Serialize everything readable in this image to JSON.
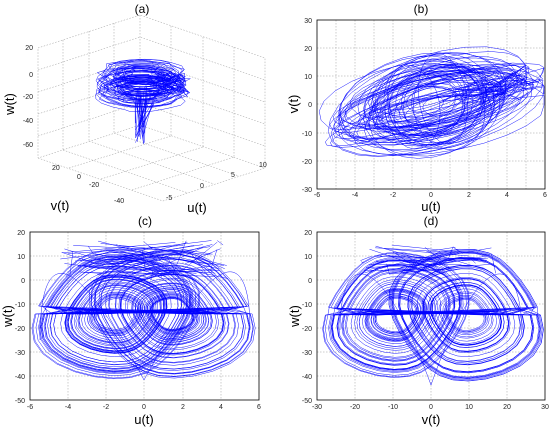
{
  "chart_data": [
    {
      "type": "line",
      "title": "(a)",
      "projection": "3d",
      "xlabel": "u(t)",
      "ylabel": "v(t)",
      "zlabel": "w(t)",
      "xlim": [
        -10,
        10
      ],
      "ylim": [
        -40,
        40
      ],
      "zlim": [
        -60,
        20
      ],
      "u_ticks": [
        "-5",
        "0",
        "5",
        "10"
      ],
      "v_ticks": [
        "-40",
        "-20",
        "0",
        "20"
      ],
      "w_ticks": [
        "20",
        "0",
        "-20",
        "-40",
        "-60"
      ],
      "grid": true,
      "color": "#0000ff"
    },
    {
      "type": "line",
      "title": "(b)",
      "xlabel": "u(t)",
      "ylabel": "v(t)",
      "xlim": [
        -6,
        6
      ],
      "ylim": [
        -30,
        30
      ],
      "x_ticks": [
        "-6",
        "-4",
        "-2",
        "0",
        "2",
        "4",
        "6"
      ],
      "y_ticks": [
        "30",
        "20",
        "10",
        "0",
        "-10",
        "-20",
        "-30"
      ],
      "grid": true,
      "color": "#0000ff"
    },
    {
      "type": "line",
      "title": "(c)",
      "xlabel": "u(t)",
      "ylabel": "w(t)",
      "xlim": [
        -6,
        6
      ],
      "ylim": [
        -50,
        20
      ],
      "x_ticks": [
        "-6",
        "-4",
        "-2",
        "0",
        "2",
        "4",
        "6"
      ],
      "y_ticks": [
        "20",
        "10",
        "0",
        "-10",
        "-20",
        "-30",
        "-40",
        "-50"
      ],
      "grid": true,
      "color": "#0000ff"
    },
    {
      "type": "line",
      "title": "(d)",
      "xlabel": "v(t)",
      "ylabel": "w(t)",
      "xlim": [
        -30,
        30
      ],
      "ylim": [
        -50,
        20
      ],
      "x_ticks": [
        "-30",
        "-20",
        "-10",
        "0",
        "10",
        "20",
        "30"
      ],
      "y_ticks": [
        "20",
        "10",
        "0",
        "-10",
        "-20",
        "-30",
        "-40",
        "-50"
      ],
      "grid": true,
      "color": "#0000ff"
    }
  ]
}
